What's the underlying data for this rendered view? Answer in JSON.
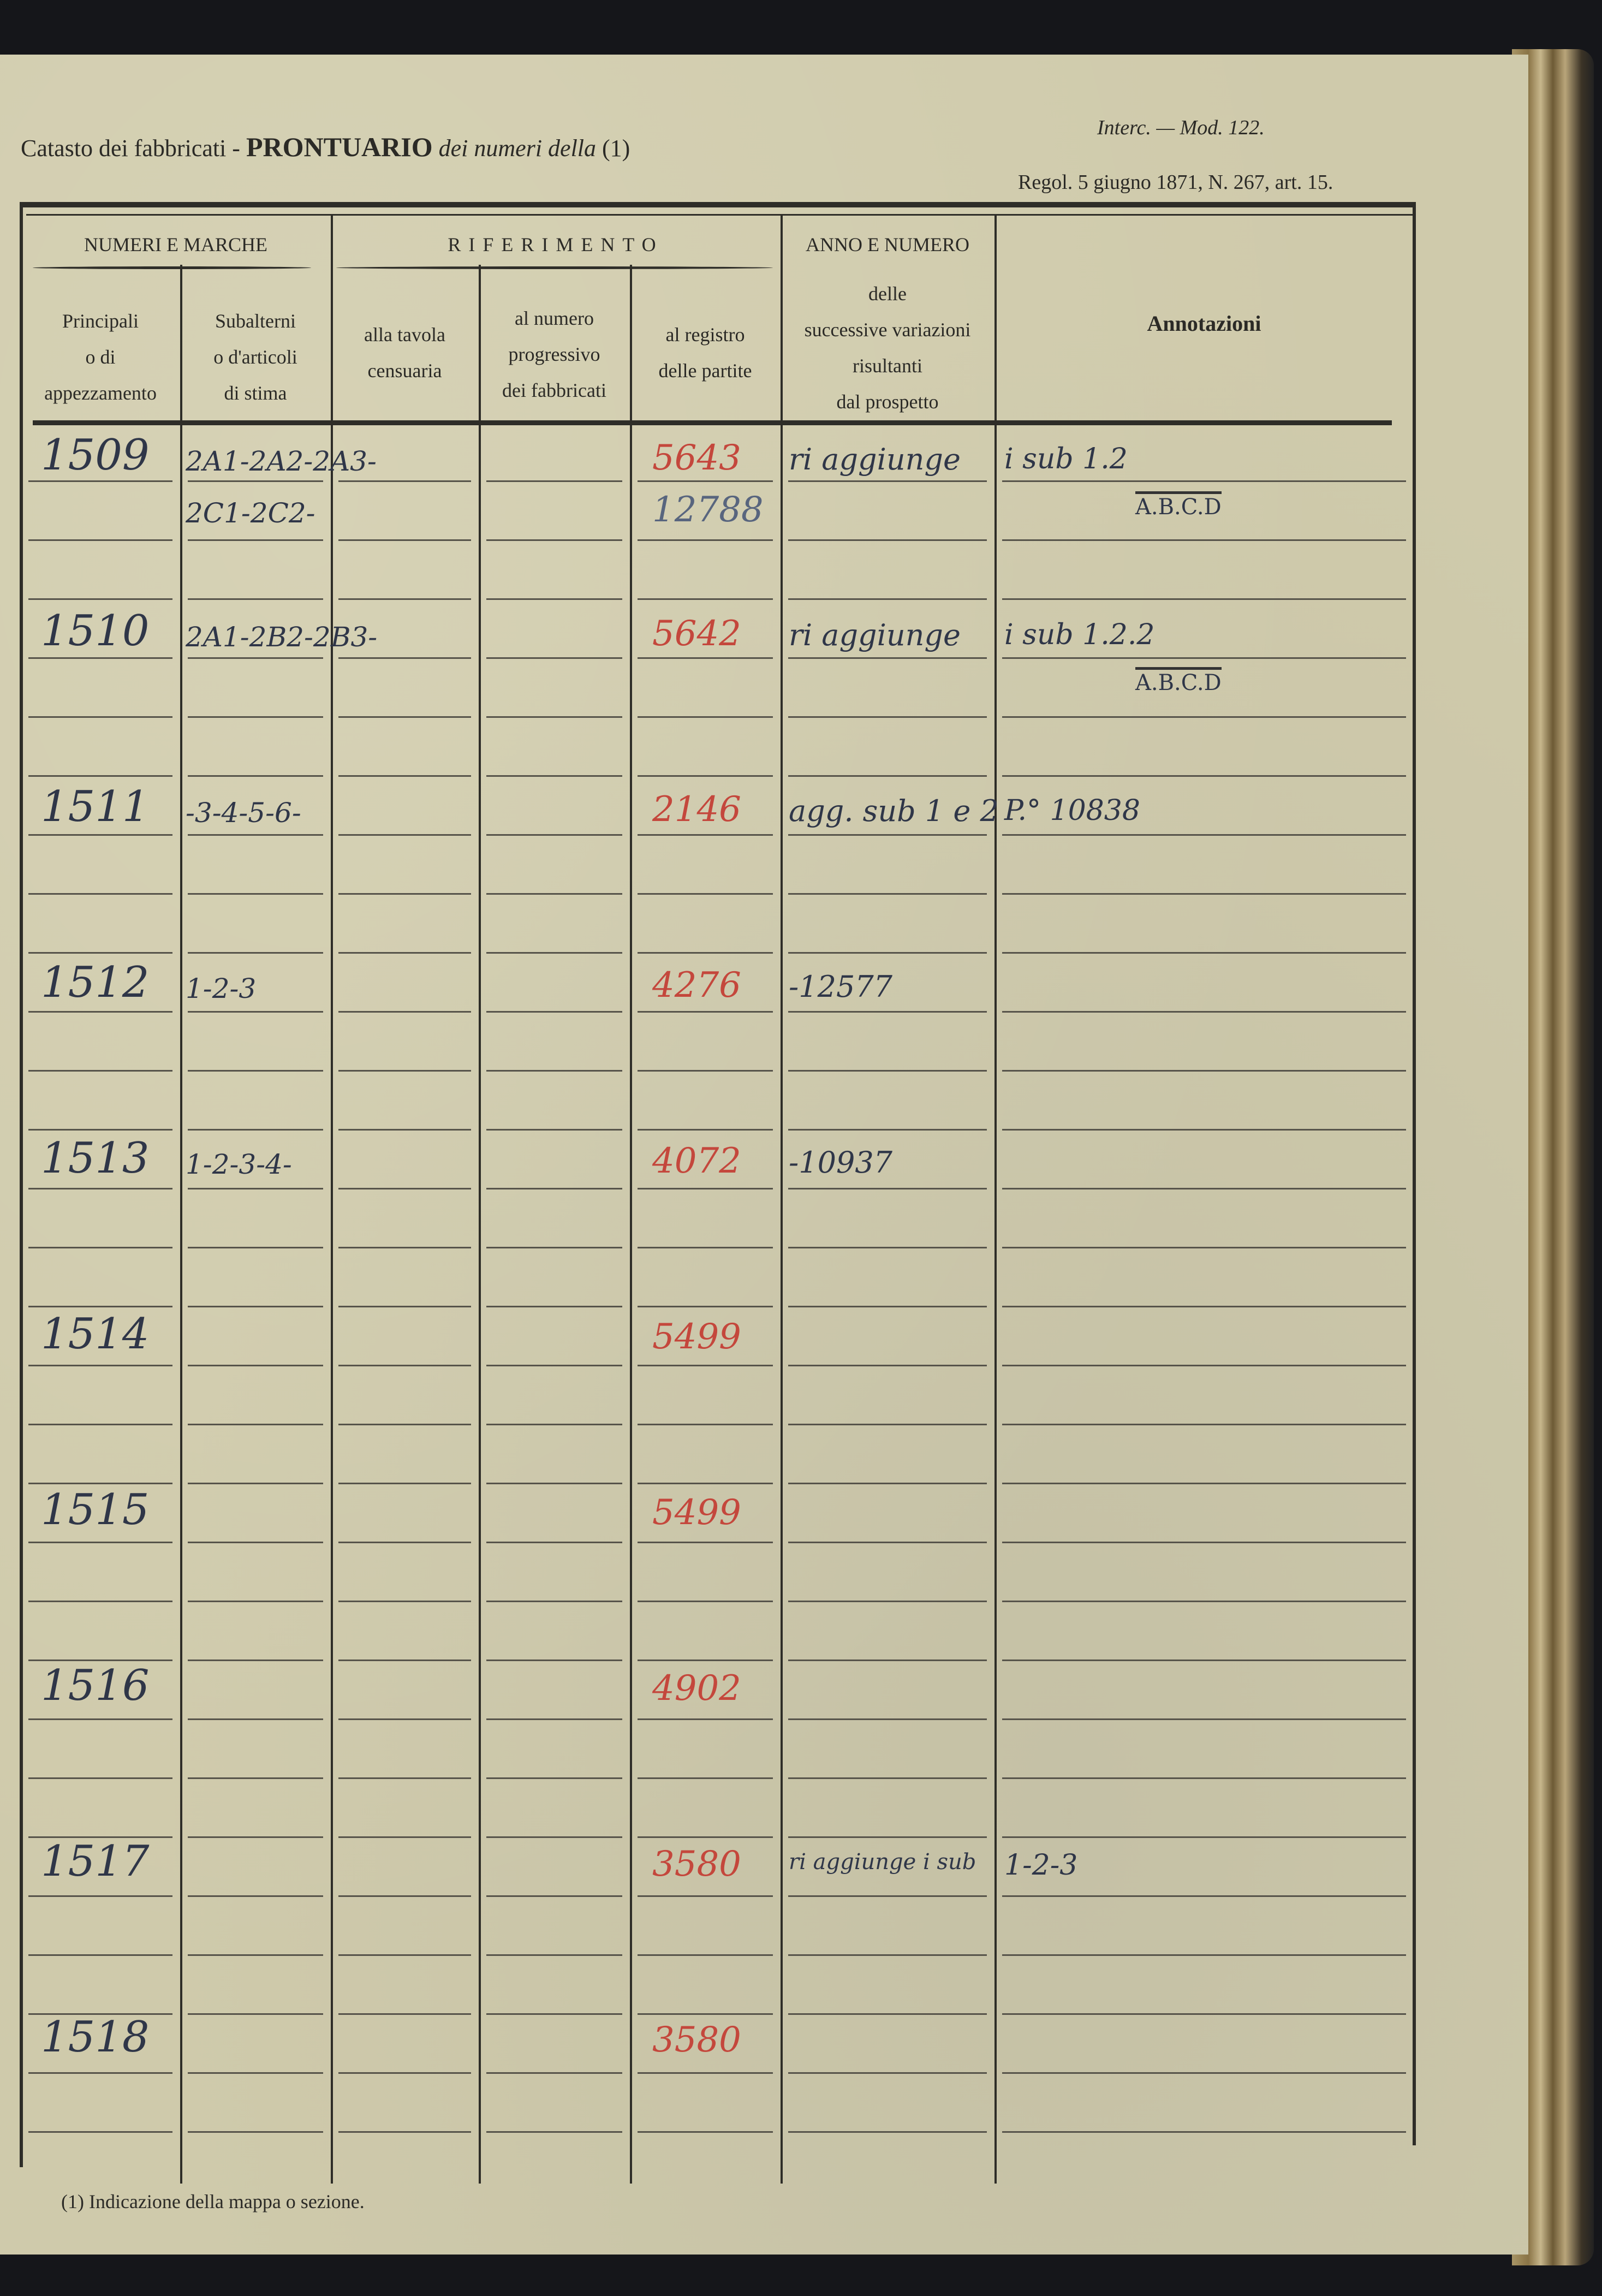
{
  "header": {
    "title_left": "Catasto dei fabbricati -",
    "title_main": "PRONTUARIO",
    "title_italic": "dei numeri della",
    "title_note": "(1)",
    "model": "Interc. — Mod. 122.",
    "regulation": "Regol. 5 giugno 1871, N. 267, art. 15."
  },
  "table": {
    "groups": {
      "numeri": "NUMERI E MARCHE",
      "riferimento": "RIFERIMENTO",
      "anno": "ANNO E NUMERO"
    },
    "columns": [
      {
        "lines": [
          "Principali",
          "o di",
          "appezzamento"
        ]
      },
      {
        "lines": [
          "Subalterni",
          "o d'articoli",
          "di stima"
        ]
      },
      {
        "lines": [
          "alla tavola",
          "censuaria"
        ]
      },
      {
        "lines": [
          "al numero",
          "progressivo",
          "dei fabbricati"
        ]
      },
      {
        "lines": [
          "al registro",
          "delle partite"
        ]
      },
      {
        "lines": [
          "delle",
          "successive variazioni",
          "risultanti",
          "dal prospetto"
        ]
      },
      {
        "lines": [
          "Annotazioni"
        ]
      }
    ],
    "rows": [
      {
        "principale": "1509",
        "subalterni": [
          "2A1-2A2-2A3-",
          "2C1-2C2-"
        ],
        "registro": [
          {
            "v": "5643",
            "ink": "red"
          },
          {
            "v": "12788",
            "ink": "blue"
          }
        ],
        "variazioni": "ri aggiunge",
        "annotazioni": [
          "i sub 1.2",
          "A.B.C.D"
        ]
      },
      {
        "principale": "1510",
        "subalterni": [
          "2A1-2B2-2B3-"
        ],
        "registro": [
          {
            "v": "5642",
            "ink": "red"
          }
        ],
        "variazioni": "ri aggiunge",
        "annotazioni": [
          "i sub 1.2.2",
          "A.B.C.D"
        ]
      },
      {
        "principale": "1511",
        "subalterni": [
          "-3-4-5-6-"
        ],
        "registro": [
          {
            "v": "2146",
            "ink": "red"
          }
        ],
        "variazioni": "agg. sub 1 e 2",
        "annotazioni": [
          "P.° 10838"
        ]
      },
      {
        "principale": "1512",
        "subalterni": [
          "1-2-3"
        ],
        "registro": [
          {
            "v": "4276",
            "ink": "red"
          }
        ],
        "variazioni": "-12577",
        "annotazioni": []
      },
      {
        "principale": "1513",
        "subalterni": [
          "1-2-3-4-"
        ],
        "registro": [
          {
            "v": "4072",
            "ink": "red"
          }
        ],
        "variazioni": "-10937",
        "annotazioni": []
      },
      {
        "principale": "1514",
        "subalterni": [],
        "registro": [
          {
            "v": "5499",
            "ink": "red"
          }
        ],
        "variazioni": "",
        "annotazioni": []
      },
      {
        "principale": "1515",
        "subalterni": [],
        "registro": [
          {
            "v": "5499",
            "ink": "red"
          }
        ],
        "variazioni": "",
        "annotazioni": []
      },
      {
        "principale": "1516",
        "subalterni": [],
        "registro": [
          {
            "v": "4902",
            "ink": "red"
          }
        ],
        "variazioni": "",
        "annotazioni": []
      },
      {
        "principale": "1517",
        "subalterni": [],
        "registro": [
          {
            "v": "3580",
            "ink": "red"
          }
        ],
        "variazioni": "ri aggiunge i sub",
        "annotazioni": [
          "1-2-3"
        ]
      },
      {
        "principale": "1518",
        "subalterni": [],
        "registro": [
          {
            "v": "3580",
            "ink": "red"
          }
        ],
        "variazioni": "",
        "annotazioni": []
      }
    ]
  },
  "footer": {
    "note": "(1) Indicazione della mappa o sezione."
  },
  "colors": {
    "paper": "#cfcaab",
    "print_ink": "#2b2a26",
    "pen_ink": "#2f3648",
    "red_ink": "#c4473c"
  }
}
